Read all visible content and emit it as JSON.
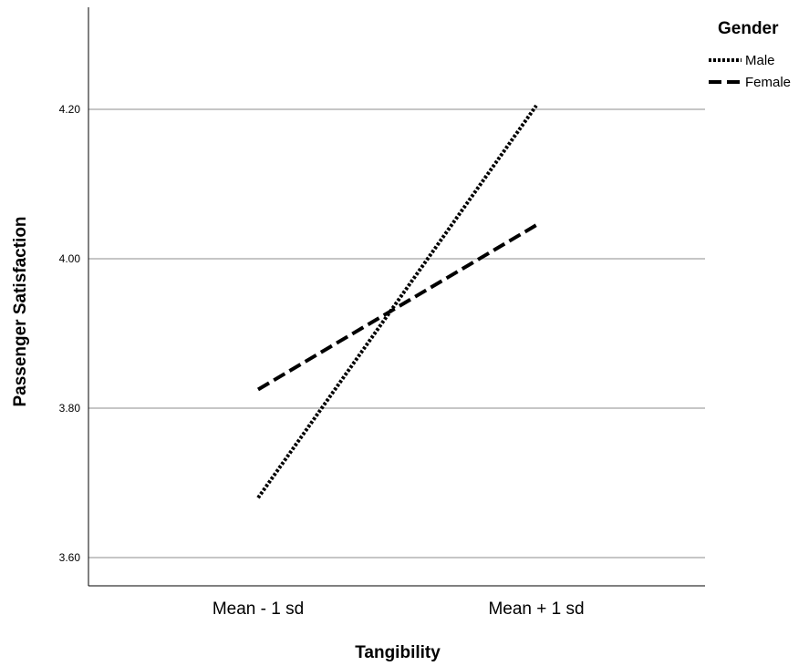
{
  "chart_data": {
    "type": "line",
    "xlabel": "Tangibility",
    "ylabel": "Passenger Satisfaction",
    "categories": [
      "Mean - 1 sd",
      "Mean + 1 sd"
    ],
    "ylim": [
      3.56,
      4.34
    ],
    "yticks": [
      "3.60",
      "3.80",
      "4.00",
      "4.20"
    ],
    "grid": "horizontal",
    "legend": {
      "title": "Gender",
      "placement": "top-right"
    },
    "series": [
      {
        "name": "Male",
        "style": "dotted",
        "color": "#000000",
        "values": [
          3.68,
          4.205
        ]
      },
      {
        "name": "Female",
        "style": "dashed",
        "color": "#000000",
        "values": [
          3.825,
          4.045
        ]
      }
    ]
  }
}
